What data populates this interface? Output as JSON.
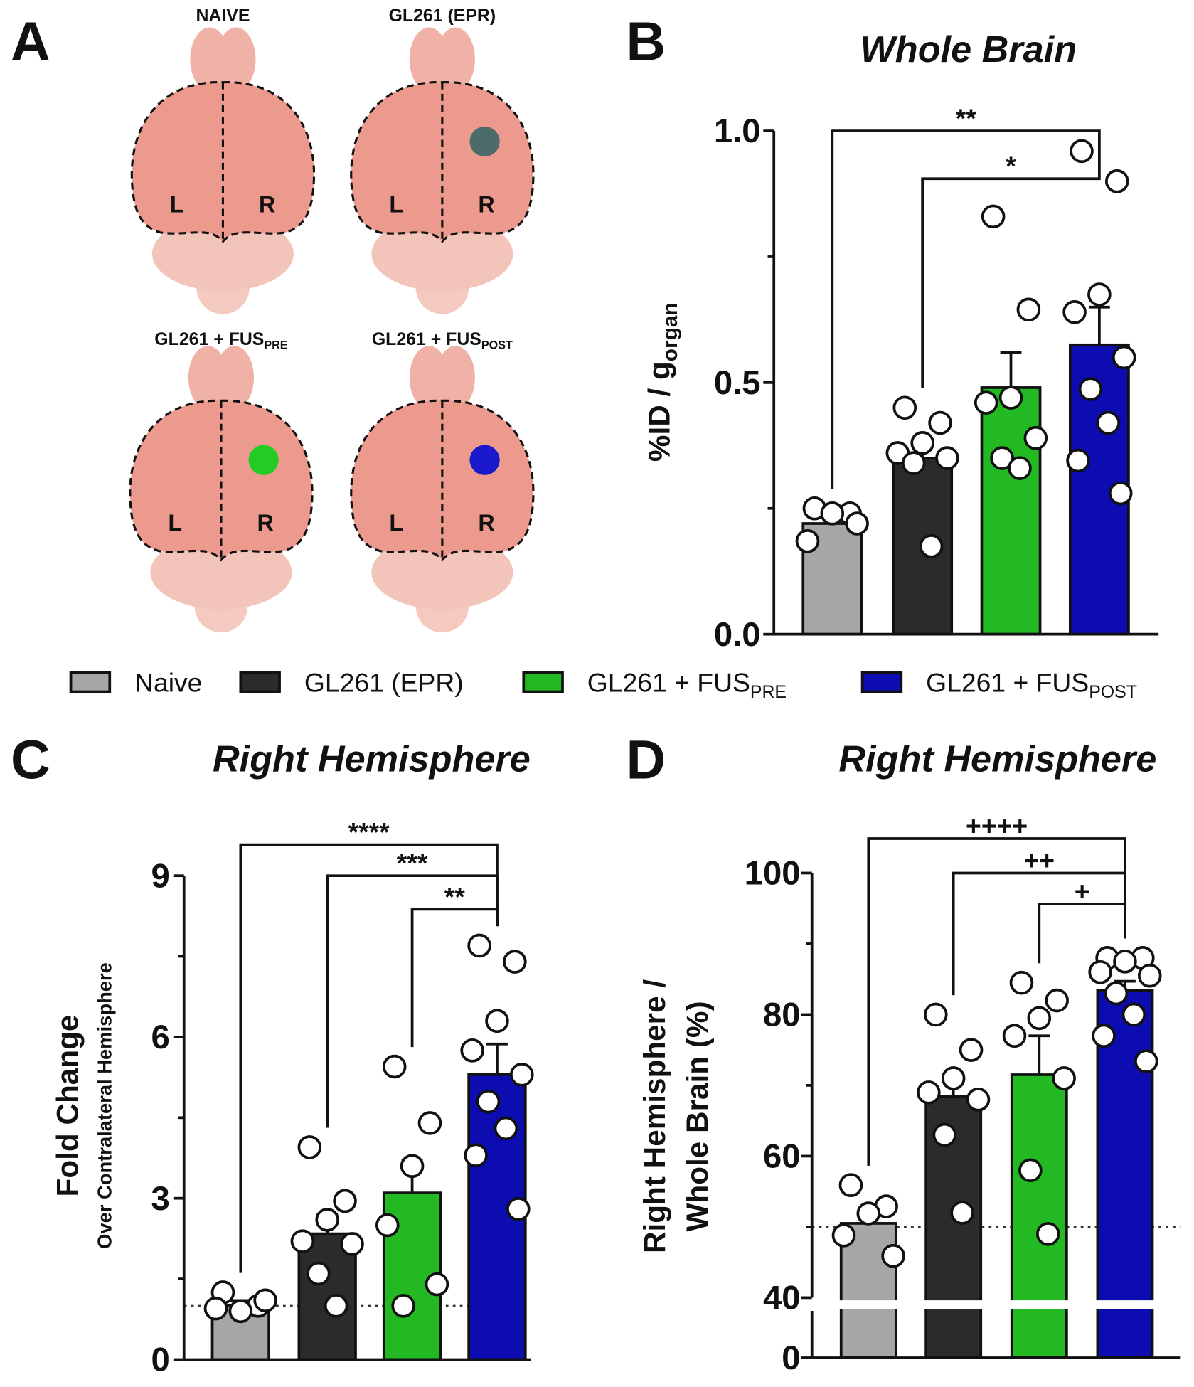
{
  "panel_labels": [
    "A",
    "B",
    "C",
    "D"
  ],
  "brain_panel": {
    "titles": [
      {
        "text": "NAIVE"
      },
      {
        "text": "GL261 (EPR)"
      },
      {
        "text": "GL261 + FUS",
        "subscript": "PRE"
      },
      {
        "text": "GL261 + FUS",
        "subscript": "POST"
      }
    ],
    "left": "L",
    "right": "R"
  },
  "legend": {
    "entries": [
      {
        "text": "Naive",
        "color": "#a6a6a6"
      },
      {
        "text": "GL261 (EPR)",
        "color": "#2b2b2b"
      },
      {
        "text": "GL261 + FUS",
        "subscript": "PRE",
        "color": "#22b922"
      },
      {
        "text": "GL261 + FUS",
        "subscript": "POST",
        "color": "#0c0cb0"
      }
    ]
  },
  "chart_data": [
    {
      "type": "bar",
      "title": "Whole Brain",
      "ylabel": {
        "text": "%ID / g",
        "subscript": "organ"
      },
      "values": [
        0.22,
        0.35,
        0.49,
        0.575
      ],
      "errors": [
        0.015,
        0.035,
        0.07,
        0.075
      ],
      "points": [
        [
          0.25,
          0.24,
          0.24,
          0.185,
          0.22
        ],
        [
          0.45,
          0.42,
          0.38,
          0.36,
          0.35,
          0.34,
          0.175
        ],
        [
          0.83,
          0.645,
          0.47,
          0.46,
          0.39,
          0.35,
          0.33
        ],
        [
          0.96,
          0.9,
          0.675,
          0.64,
          0.55,
          0.487,
          0.42,
          0.345,
          0.28
        ]
      ],
      "ylim": [
        0,
        1.0
      ],
      "yticks": [
        {
          "value": 0,
          "label": "0.0"
        },
        {
          "value": 0.5,
          "label": "0.5"
        },
        {
          "value": 1.0,
          "label": "1.0"
        }
      ],
      "minor_yticks": [
        0.25,
        0.75
      ],
      "brackets": [
        {
          "label": "**",
          "from": 0,
          "to": 3
        },
        {
          "label": "*",
          "from": 1,
          "to": 3
        }
      ]
    },
    {
      "type": "bar",
      "title": "Right Hemisphere",
      "ylabel": {
        "text": "Fold Change",
        "second_line": "Over Contralateral Hemisphere"
      },
      "values": [
        1.0,
        2.34,
        3.1,
        5.3
      ],
      "errors": [
        0.1,
        0.36,
        0.6,
        0.57
      ],
      "points": [
        [
          1.25,
          1.0,
          0.9,
          0.95,
          1.1
        ],
        [
          3.95,
          2.95,
          2.6,
          2.2,
          2.15,
          1.6,
          1.0
        ],
        [
          5.45,
          4.4,
          3.6,
          2.5,
          1.4,
          1.0
        ],
        [
          7.7,
          7.4,
          6.3,
          5.75,
          5.3,
          4.8,
          4.3,
          3.8,
          2.8
        ]
      ],
      "ylim": [
        0,
        9
      ],
      "yticks": [
        0,
        3,
        6,
        9
      ],
      "minor_yticks": [
        1.5,
        4.5,
        7.5
      ],
      "reference_line": 1,
      "brackets": [
        {
          "label": "****",
          "from": 0,
          "to": 3
        },
        {
          "label": "***",
          "from": 1,
          "to": 3
        },
        {
          "label": "**",
          "from": 2,
          "to": 3
        }
      ]
    },
    {
      "type": "bar",
      "title": "Right Hemisphere",
      "ylabel": {
        "text": "Right Hemisphere /",
        "second_line": "Whole Brain (%)"
      },
      "values": [
        50.5,
        68.4,
        71.5,
        83.4
      ],
      "errors": [
        2,
        3.1,
        5.5,
        1.3
      ],
      "points": [
        [
          55.9,
          52.9,
          51.9,
          48.8,
          45.9
        ],
        [
          80,
          75,
          71,
          69,
          68,
          63,
          52
        ],
        [
          84.5,
          82,
          79.5,
          77,
          71,
          58,
          49
        ],
        [
          88,
          88,
          87.5,
          86,
          85.5,
          83,
          80,
          77,
          73.4
        ]
      ],
      "ylim": [
        0,
        100
      ],
      "axis_break": 40,
      "yticks": [
        0,
        40,
        60,
        80,
        100
      ],
      "minor_yticks": [
        50,
        70,
        90
      ],
      "reference_line": 50,
      "brackets": [
        {
          "label": "++++",
          "from": 0,
          "to": 3
        },
        {
          "label": "++",
          "from": 1,
          "to": 3
        },
        {
          "label": "+",
          "from": 2,
          "to": 3
        }
      ]
    }
  ]
}
